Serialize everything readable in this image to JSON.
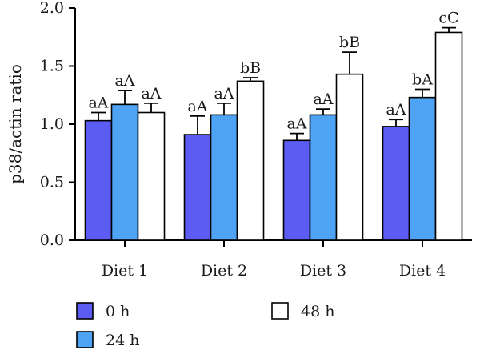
{
  "chart_data": {
    "type": "bar",
    "title": "",
    "xlabel": "",
    "ylabel": "p38/actin ratio",
    "ylim": [
      0,
      2.0
    ],
    "yticks": [
      "0.0",
      "0.5",
      "1.0",
      "1.5",
      "2.0"
    ],
    "categories": [
      "Diet 1",
      "Diet 2",
      "Diet 3",
      "Diet 4"
    ],
    "grid": false,
    "legend_position": "bottom",
    "series": [
      {
        "name": "0 h",
        "color": "#5c5cf2",
        "values": [
          1.03,
          0.91,
          0.86,
          0.98
        ],
        "errors": [
          0.07,
          0.16,
          0.06,
          0.06
        ],
        "labels": [
          "aA",
          "aA",
          "aA",
          "aA"
        ]
      },
      {
        "name": "24 h",
        "color": "#4ea3f5",
        "values": [
          1.17,
          1.08,
          1.08,
          1.23
        ],
        "errors": [
          0.12,
          0.1,
          0.05,
          0.07
        ],
        "labels": [
          "aA",
          "aA",
          "aA",
          "bA"
        ]
      },
      {
        "name": "48 h",
        "color": "#ffffff",
        "values": [
          1.1,
          1.37,
          1.43,
          1.79
        ],
        "errors": [
          0.08,
          0.03,
          0.19,
          0.04
        ],
        "labels": [
          "aA",
          "bB",
          "bB",
          "cC"
        ]
      }
    ]
  }
}
